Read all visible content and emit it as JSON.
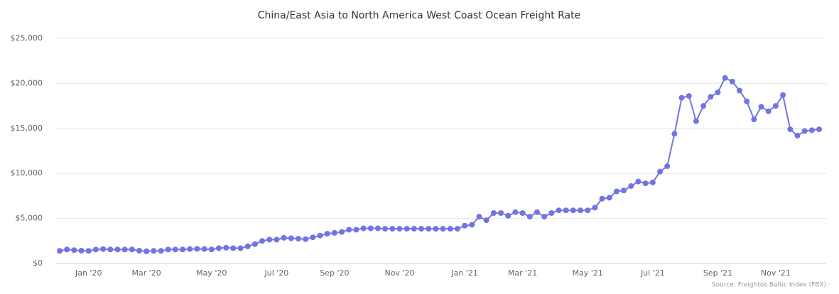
{
  "chart_data": {
    "type": "line",
    "title": "China/East Asia to North America West Coast Ocean Freight Rate",
    "source": "Source: Freightos Baltic Index (FBX)",
    "categories": [
      null,
      null,
      null,
      null,
      "Jan '20",
      null,
      null,
      null,
      null,
      null,
      null,
      null,
      "Mar '20",
      null,
      null,
      null,
      null,
      null,
      null,
      null,
      null,
      "May '20",
      null,
      null,
      null,
      null,
      null,
      null,
      null,
      null,
      "Jul '20",
      null,
      null,
      null,
      null,
      null,
      null,
      null,
      "Sep '20",
      null,
      null,
      null,
      null,
      null,
      null,
      null,
      null,
      "Nov '20",
      null,
      null,
      null,
      null,
      null,
      null,
      null,
      null,
      "Jan '21",
      null,
      null,
      null,
      null,
      null,
      null,
      null,
      "Mar '21",
      null,
      null,
      null,
      null,
      null,
      null,
      null,
      null,
      "May '21",
      null,
      null,
      null,
      null,
      null,
      null,
      null,
      null,
      "Jul '21",
      null,
      null,
      null,
      null,
      null,
      null,
      null,
      null,
      "Sep '21",
      null,
      null,
      null,
      null,
      null,
      null,
      null,
      "Nov '21",
      null,
      null,
      null,
      null,
      null,
      null
    ],
    "series": [
      {
        "name": "FBX",
        "color": "#7274e3",
        "values": [
          1400,
          1550,
          1480,
          1420,
          1400,
          1550,
          1600,
          1550,
          1550,
          1550,
          1550,
          1420,
          1350,
          1400,
          1400,
          1550,
          1550,
          1550,
          1600,
          1620,
          1600,
          1550,
          1700,
          1750,
          1700,
          1700,
          1900,
          2150,
          2500,
          2650,
          2650,
          2850,
          2800,
          2750,
          2700,
          2900,
          3100,
          3300,
          3400,
          3500,
          3750,
          3750,
          3900,
          3900,
          3900,
          3850,
          3850,
          3850,
          3850,
          3850,
          3850,
          3850,
          3850,
          3850,
          3850,
          3850,
          4200,
          4300,
          5200,
          4800,
          5600,
          5600,
          5300,
          5700,
          5600,
          5200,
          5700,
          5200,
          5600,
          5900,
          5900,
          5900,
          5900,
          5900,
          6200,
          7200,
          7300,
          8000,
          8100,
          8600,
          9100,
          8900,
          9000,
          10200,
          10800,
          14400,
          18400,
          18600,
          15800,
          17500,
          18500,
          19000,
          20600,
          20200,
          19200,
          18000,
          16000,
          17400,
          16900,
          17500,
          18700,
          14900,
          14200,
          14700,
          14800,
          14900
        ]
      }
    ],
    "ylim": [
      0,
      25000
    ],
    "yticks": [
      {
        "value": 0,
        "label": "$0"
      },
      {
        "value": 5000,
        "label": "$5,000"
      },
      {
        "value": 10000,
        "label": "$10,000"
      },
      {
        "value": 15000,
        "label": "$15,000"
      },
      {
        "value": 20000,
        "label": "$20,000"
      },
      {
        "value": 25000,
        "label": "$25,000"
      }
    ],
    "grid": true
  }
}
